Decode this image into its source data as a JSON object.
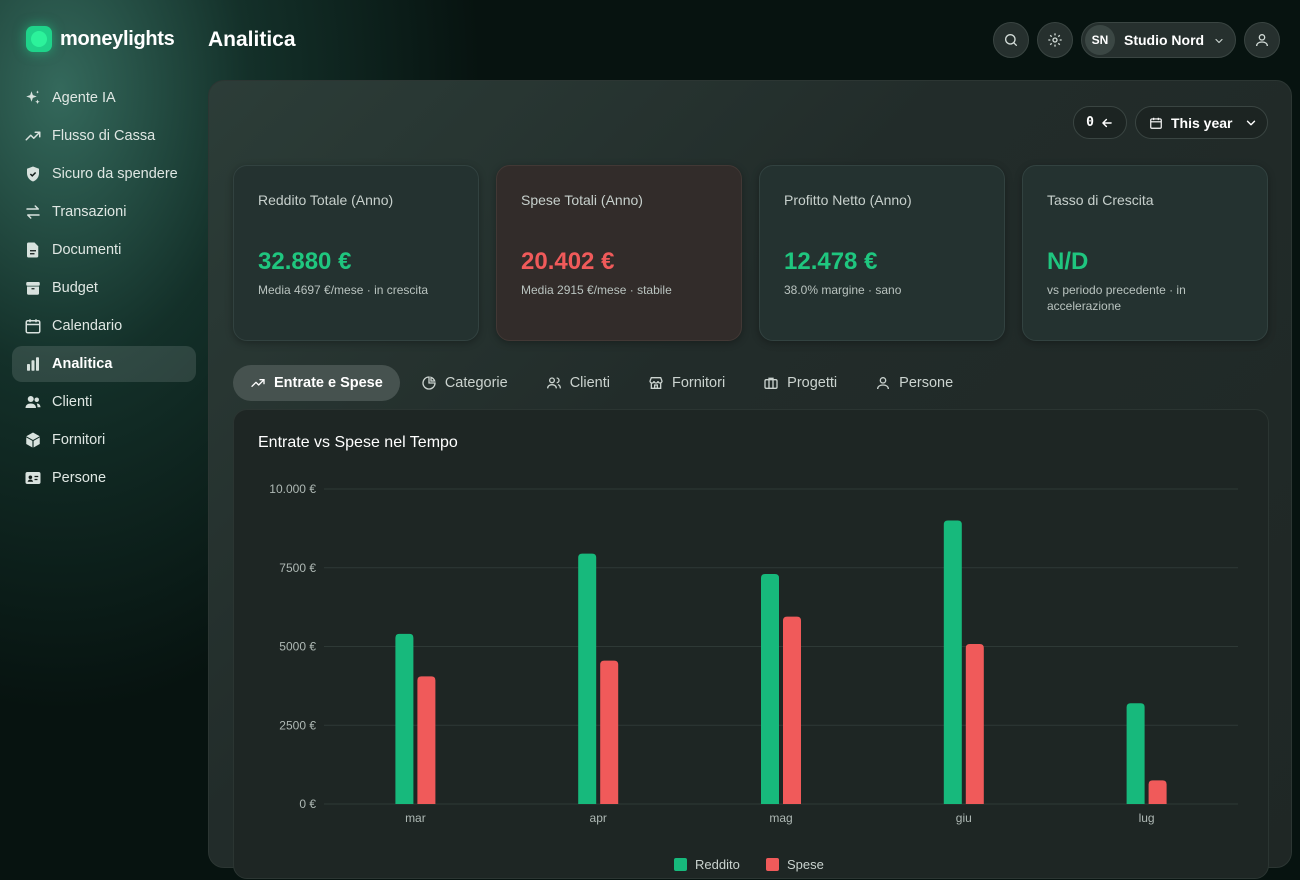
{
  "app": {
    "brand": "moneylights",
    "page_title": "Analitica"
  },
  "sidebar": {
    "items": [
      {
        "label": "Agente IA",
        "icon": "sparkles-icon",
        "active": false
      },
      {
        "label": "Flusso di Cassa",
        "icon": "trend-up-icon",
        "active": false
      },
      {
        "label": "Sicuro da spendere",
        "icon": "shield-check-icon",
        "active": false
      },
      {
        "label": "Transazioni",
        "icon": "arrows-swap-icon",
        "active": false
      },
      {
        "label": "Documenti",
        "icon": "document-icon",
        "active": false
      },
      {
        "label": "Budget",
        "icon": "archive-box-icon",
        "active": false
      },
      {
        "label": "Calendario",
        "icon": "calendar-icon",
        "active": false
      },
      {
        "label": "Analitica",
        "icon": "bar-chart-icon",
        "active": true
      },
      {
        "label": "Clienti",
        "icon": "users-icon",
        "active": false
      },
      {
        "label": "Fornitori",
        "icon": "cube-icon",
        "active": false
      },
      {
        "label": "Persone",
        "icon": "id-card-icon",
        "active": false
      }
    ]
  },
  "header": {
    "search_icon": "search-icon",
    "settings_icon": "gear-icon",
    "org": {
      "initials": "SN",
      "name": "Studio Nord"
    },
    "profile_icon": "user-icon"
  },
  "toolbar": {
    "reset_label": "0",
    "period_label": "This year"
  },
  "cards": [
    {
      "title": "Reddito Totale (Anno)",
      "value": "32.880 €",
      "sub": "Media 4697 €/mese · in crescita",
      "tone": "positive"
    },
    {
      "title": "Spese Totali (Anno)",
      "value": "20.402 €",
      "sub": "Media 2915 €/mese · stabile",
      "tone": "negative"
    },
    {
      "title": "Profitto Netto (Anno)",
      "value": "12.478 €",
      "sub": "38.0% margine · sano",
      "tone": "positive"
    },
    {
      "title": "Tasso di Crescita",
      "value": "N/D",
      "sub": "vs periodo precedente · in accelerazione",
      "tone": "positive"
    }
  ],
  "tabs": [
    {
      "label": "Entrate e Spese",
      "icon": "trend-up-icon",
      "active": true
    },
    {
      "label": "Categorie",
      "icon": "pie-chart-icon",
      "active": false
    },
    {
      "label": "Clienti",
      "icon": "users-icon",
      "active": false
    },
    {
      "label": "Fornitori",
      "icon": "store-icon",
      "active": false
    },
    {
      "label": "Progetti",
      "icon": "briefcase-icon",
      "active": false
    },
    {
      "label": "Persone",
      "icon": "user-icon",
      "active": false
    }
  ],
  "chart_data": {
    "type": "bar",
    "title": "Entrate vs Spese nel Tempo",
    "categories": [
      "mar",
      "apr",
      "mag",
      "giu",
      "lug"
    ],
    "series": [
      {
        "name": "Reddito",
        "color": "#17b97c",
        "values": [
          5400,
          7950,
          7300,
          9000,
          3200
        ]
      },
      {
        "name": "Spese",
        "color": "#f05a5a",
        "values": [
          4050,
          4550,
          5950,
          5080,
          750
        ]
      }
    ],
    "y_ticks": [
      0,
      2500,
      5000,
      7500,
      10000
    ],
    "y_tick_labels": [
      "0 €",
      "2500 €",
      "5000 €",
      "7500 €",
      "10.000 €"
    ],
    "ylim": [
      0,
      10000
    ],
    "grid": true,
    "legend": "bottom"
  }
}
